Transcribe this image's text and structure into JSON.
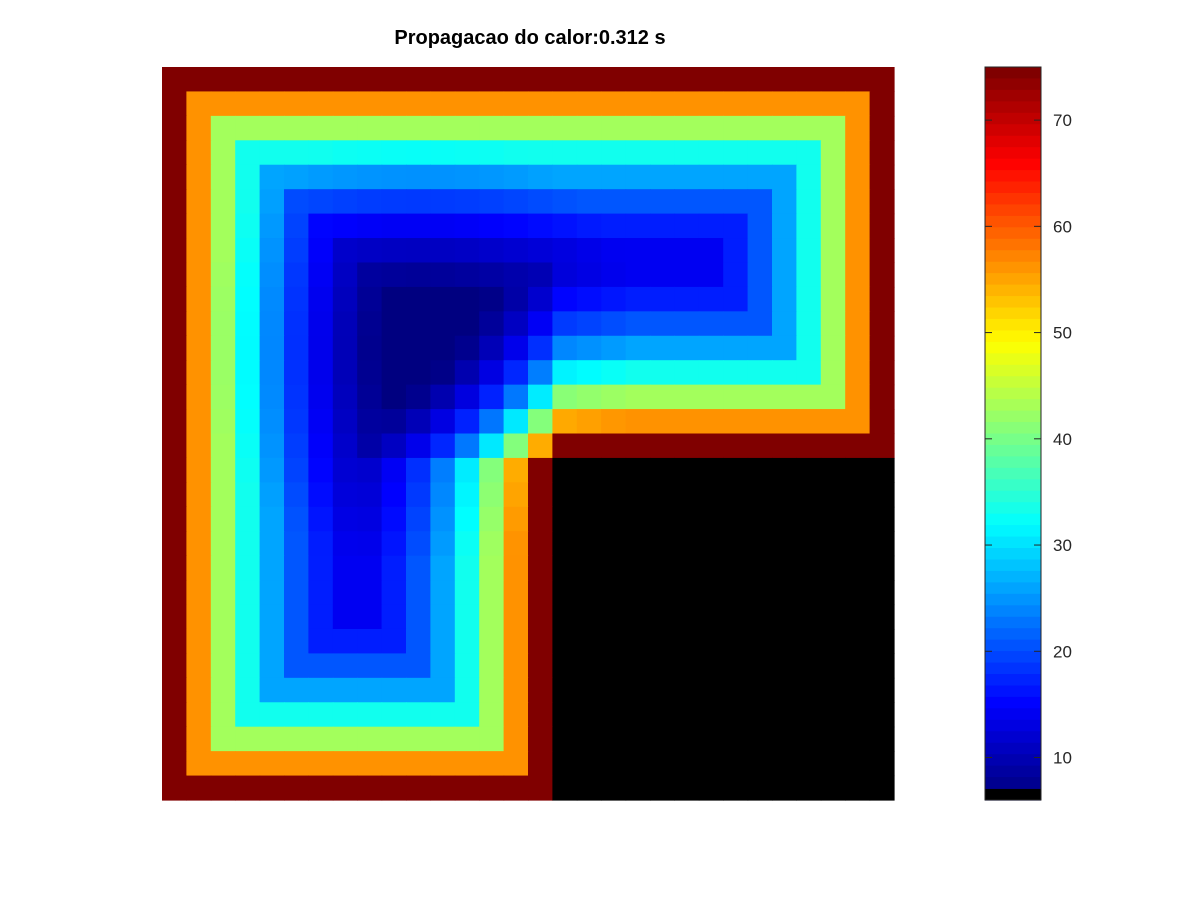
{
  "chart_data": {
    "type": "heatmap",
    "title": "Propagacao do calor:0.312 s",
    "title_prefix": "Propagacao do calor:",
    "time_label": "0.312 s",
    "grid": {
      "cols": 30,
      "rows": 30
    },
    "colormap": "jet",
    "masked_color": "#000000",
    "masked_region": "lower-right quadrant (cols 16-29, rows 16-29)",
    "boundary_value": 75,
    "color_range": [
      6,
      75
    ],
    "colorbar": {
      "position": "right",
      "ticks": [
        10,
        20,
        30,
        40,
        50,
        60,
        70
      ],
      "tick_labels": [
        "10",
        "20",
        "30",
        "40",
        "50",
        "60",
        "70"
      ],
      "min": 6,
      "max": 75
    },
    "minimum": {
      "value": 6,
      "col": 10,
      "row": 11
    },
    "axes_visible": false
  }
}
